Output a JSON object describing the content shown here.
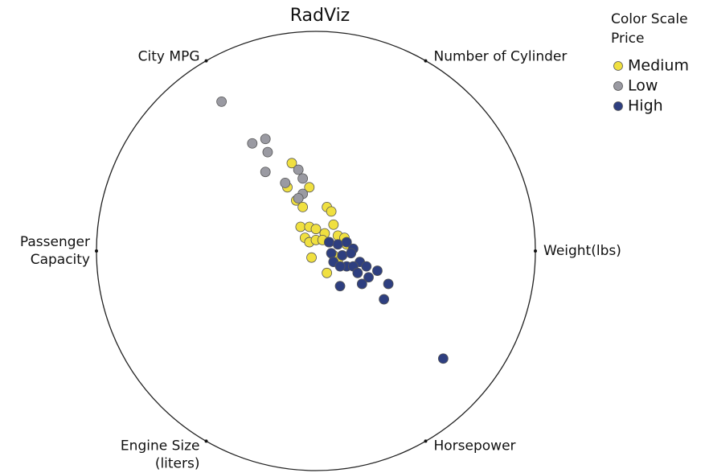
{
  "chart_data": {
    "type": "radviz",
    "title": "RadViz",
    "legend_title": [
      "Color Scale",
      "Price"
    ],
    "dimensions": [
      [
        "Weight(lbs)"
      ],
      [
        "Number of Cylinder"
      ],
      [
        "City MPG"
      ],
      [
        "Passenger",
        "Capacity"
      ],
      [
        "Engine Size",
        "(liters)"
      ],
      [
        "Horsepower"
      ]
    ],
    "xlim": [
      -1,
      1
    ],
    "ylim": [
      -1,
      1
    ],
    "series": [
      {
        "name": "Medium",
        "color": "#f0e040",
        "x": [
          -0.11,
          -0.13,
          -0.09,
          -0.06,
          -0.03,
          0.05,
          0.07,
          -0.07,
          -0.03,
          0.0,
          0.04,
          -0.05,
          -0.03,
          0.0,
          0.08,
          0.1,
          0.13,
          0.06,
          -0.02,
          0.05,
          0.08,
          0.1,
          0.14,
          0.03
        ],
        "values": [
          0.4,
          0.29,
          0.23,
          0.2,
          0.29,
          0.2,
          0.18,
          0.11,
          0.11,
          0.1,
          0.08,
          0.06,
          0.04,
          0.05,
          0.12,
          0.07,
          0.06,
          0.04,
          -0.03,
          -0.1,
          -0.02,
          -0.05,
          0.03,
          0.05
        ]
      },
      {
        "name": "Low",
        "color": "#9a9aa2",
        "x": [
          -0.43,
          -0.29,
          -0.23,
          -0.22,
          -0.23,
          -0.08,
          -0.06,
          -0.14,
          -0.06,
          -0.08
        ],
        "values": [
          0.68,
          0.49,
          0.51,
          0.45,
          0.36,
          0.37,
          0.33,
          0.31,
          0.26,
          0.24
        ]
      },
      {
        "name": "High",
        "color": "#2e3f80",
        "x": [
          0.06,
          0.1,
          0.14,
          0.17,
          0.07,
          0.12,
          0.16,
          0.2,
          0.08,
          0.14,
          0.17,
          0.23,
          0.28,
          0.24,
          0.21,
          0.33,
          0.11,
          0.31,
          0.58,
          0.11,
          0.19
        ],
        "values": [
          0.04,
          0.03,
          0.04,
          0.01,
          -0.01,
          -0.02,
          -0.01,
          -0.05,
          -0.05,
          -0.07,
          -0.07,
          -0.07,
          -0.09,
          -0.12,
          -0.15,
          -0.15,
          -0.16,
          -0.22,
          -0.49,
          -0.07,
          -0.1
        ]
      }
    ]
  }
}
